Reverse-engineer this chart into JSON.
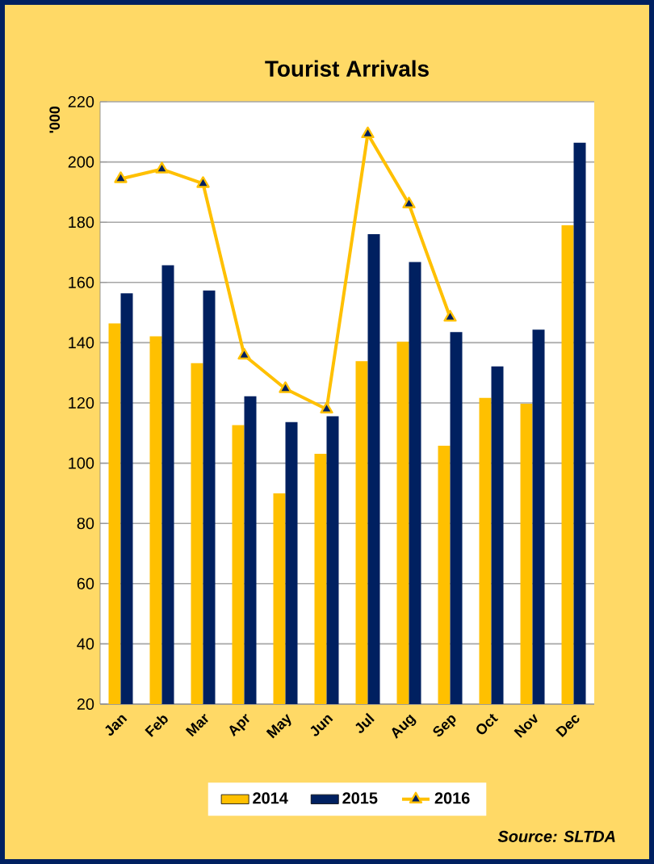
{
  "chart_data": {
    "type": "bar",
    "title": "Tourist Arrivals",
    "ylabel": "'000",
    "categories": [
      "Jan",
      "Feb",
      "Mar",
      "Apr",
      "May",
      "Jun",
      "Jul",
      "Aug",
      "Sep",
      "Oct",
      "Nov",
      "Dec"
    ],
    "series": [
      {
        "name": "2014",
        "color": "#ffc000",
        "values": [
          146.4,
          142.1,
          133.2,
          112.6,
          90,
          103.1,
          133.9,
          140.3,
          105.8,
          121.7,
          119.7,
          179
        ]
      },
      {
        "name": "2015",
        "color": "#002060",
        "values": [
          156.4,
          165.7,
          157.3,
          122.2,
          113.6,
          115.6,
          176,
          166.8,
          143.5,
          132.1,
          144.3,
          206.4
        ]
      },
      {
        "name": "2016",
        "type": "line",
        "color": "#ffc000",
        "marker": "triangle",
        "values": [
          194.4,
          197.6,
          192.8,
          135.8,
          124.7,
          117.9,
          209.3,
          186,
          148.4,
          null,
          null,
          null
        ]
      }
    ],
    "ylim": [
      20,
      220
    ],
    "yticks": [
      20,
      40,
      60,
      80,
      100,
      120,
      140,
      160,
      180,
      200,
      220
    ],
    "grid": "y",
    "legend": "bottom",
    "annotations": [
      "Source: SLTDA"
    ]
  }
}
